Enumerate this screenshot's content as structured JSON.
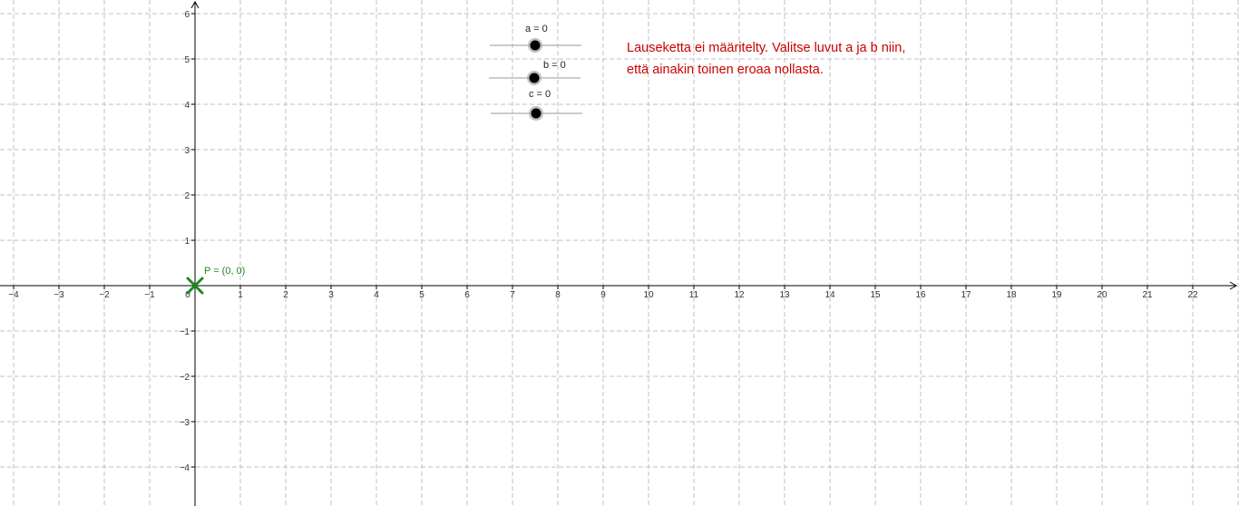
{
  "sliders": [
    {
      "label": "a = 0",
      "value": 0
    },
    {
      "label": "b = 0",
      "value": 0
    },
    {
      "label": "c = 0",
      "value": 0
    }
  ],
  "point": {
    "label": "P = (0, 0)",
    "x": 0,
    "y": 0,
    "color": "#228822"
  },
  "message": {
    "text": "Lauseketta ei määritelty. Valitse luvut a ja b niin, että ainakin toinen eroaa nollasta.",
    "color": "#cc0000"
  },
  "axes": {
    "x_ticks": [
      "−4",
      "−3",
      "−2",
      "−1",
      "0",
      "1",
      "2",
      "3",
      "4",
      "5",
      "6",
      "7",
      "8",
      "9",
      "10",
      "11",
      "12",
      "13",
      "14",
      "15",
      "16",
      "17",
      "18",
      "19",
      "20",
      "21",
      "22"
    ],
    "y_ticks": [
      "6",
      "5",
      "4",
      "3",
      "2",
      "1",
      "−1",
      "−2",
      "−3",
      "−4"
    ],
    "grid": true
  }
}
